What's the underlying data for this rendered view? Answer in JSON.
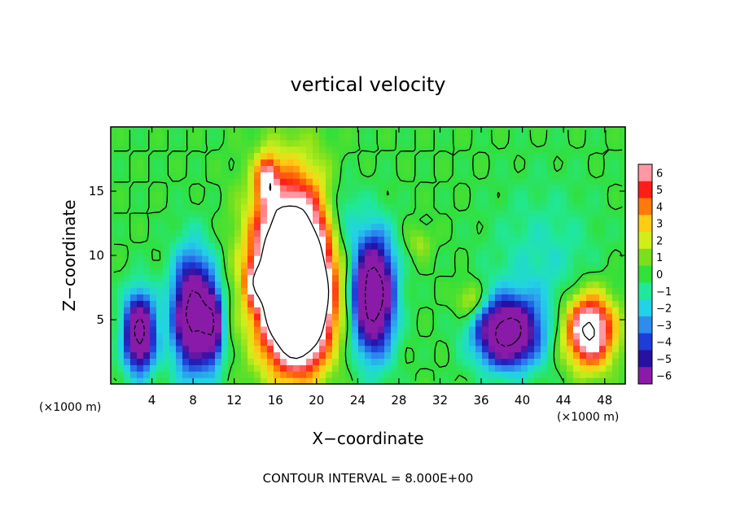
{
  "chart_data": {
    "type": "heatmap",
    "title": "vertical velocity",
    "xlabel": "X−coordinate",
    "ylabel": "Z−coordinate",
    "x_unit_left": "(×1000 m)",
    "x_unit_right": "(×1000 m)",
    "footer": "CONTOUR INTERVAL = 8.000E+00",
    "xlim": [
      0,
      50
    ],
    "ylim": [
      0,
      20
    ],
    "x_ticks": [
      4,
      8,
      12,
      16,
      20,
      24,
      28,
      32,
      36,
      40,
      44,
      48
    ],
    "x_tick_labels": [
      "4",
      "8",
      "12",
      "16",
      "20",
      "24",
      "28",
      "32",
      "36",
      "40",
      "44",
      "48"
    ],
    "y_ticks": [
      5,
      10,
      15
    ],
    "y_tick_labels": [
      "5",
      "10",
      "15"
    ],
    "colorbar": {
      "range": [
        -6,
        6
      ],
      "tick_values": [
        6,
        5,
        4,
        3,
        2,
        1,
        0,
        -1,
        -2,
        -3,
        -4,
        -5,
        -6
      ],
      "tick_labels": [
        "6",
        "5",
        "4",
        "3",
        "2",
        "1",
        "0",
        "−1",
        "−2",
        "−3",
        "−4",
        "−5",
        "−6"
      ],
      "colors": {
        "-6": "#8a1aa8",
        "-5": "#2810a0",
        "-4": "#1e3cd8",
        "-3": "#2e8cf0",
        "-2": "#22d2e6",
        "-1": "#20e89a",
        "0": "#32e03a",
        "1": "#7ae01e",
        "2": "#d2ee1a",
        "3": "#ffcc14",
        "4": "#ff7a0a",
        "5": "#ff1e14",
        "6": "#ff98a2"
      },
      "over_color": "#ffffff"
    },
    "features": [
      {
        "kind": "updraft",
        "x": 17.5,
        "z": 9.0,
        "sx": 3.6,
        "sz": 6.5,
        "amp": 14
      },
      {
        "kind": "updraft",
        "x": 18.5,
        "z": 6.0,
        "sx": 2.6,
        "sz": 4.0,
        "amp": 10
      },
      {
        "kind": "updraft",
        "x": 15.2,
        "z": 16.0,
        "sx": 1.0,
        "sz": 1.8,
        "amp": 5
      },
      {
        "kind": "updraft",
        "x": 46.5,
        "z": 4.2,
        "sx": 2.4,
        "sz": 2.8,
        "amp": 9
      },
      {
        "kind": "updraft",
        "x": 14.0,
        "z": 8.0,
        "sx": 1.0,
        "sz": 1.4,
        "amp": 3
      },
      {
        "kind": "updraft",
        "x": 35.0,
        "z": 6.5,
        "sx": 1.4,
        "sz": 1.4,
        "amp": 2.5
      },
      {
        "kind": "updraft",
        "x": 30.0,
        "z": 11.0,
        "sx": 1.2,
        "sz": 1.2,
        "amp": 1.5
      },
      {
        "kind": "downdraft",
        "x": 2.8,
        "z": 4.0,
        "sx": 1.5,
        "sz": 3.0,
        "amp": -9
      },
      {
        "kind": "downdraft",
        "x": 8.0,
        "z": 5.5,
        "sx": 2.0,
        "sz": 4.5,
        "amp": -9
      },
      {
        "kind": "downdraft",
        "x": 10.0,
        "z": 4.5,
        "sx": 1.0,
        "sz": 3.0,
        "amp": -5
      },
      {
        "kind": "downdraft",
        "x": 25.5,
        "z": 7.0,
        "sx": 2.0,
        "sz": 4.5,
        "amp": -10
      },
      {
        "kind": "downdraft",
        "x": 38.5,
        "z": 4.0,
        "sx": 3.0,
        "sz": 2.6,
        "amp": -9
      },
      {
        "kind": "downdraft",
        "x": 22.5,
        "z": 13.0,
        "sx": 1.6,
        "sz": 3.0,
        "amp": -2
      },
      {
        "kind": "downdraft",
        "x": 42.0,
        "z": 9.0,
        "sx": 5.0,
        "sz": 6.0,
        "amp": -1.5
      }
    ]
  }
}
